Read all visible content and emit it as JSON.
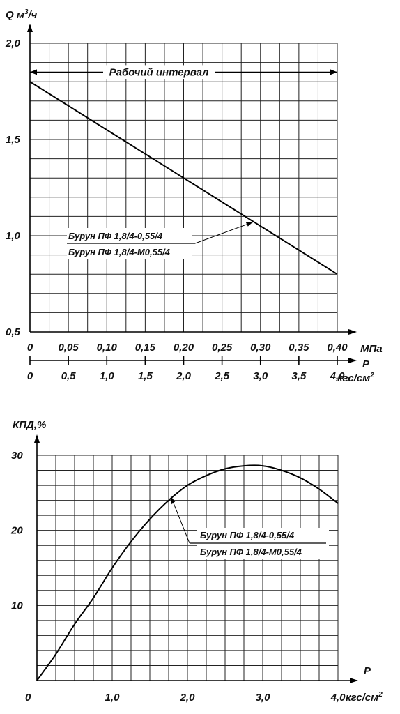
{
  "chart_data": [
    {
      "type": "line",
      "ylabel": "Q м³/ч",
      "ylabel_main": "Q м",
      "ylabel_sup": "3",
      "ylabel_tail": "/ч",
      "ylim": [
        0.5,
        2.0
      ],
      "yticks": [
        {
          "v": 0.5,
          "label": "0,5"
        },
        {
          "v": 1.0,
          "label": "1,0"
        },
        {
          "v": 1.5,
          "label": "1,5"
        },
        {
          "v": 2.0,
          "label": "2,0"
        }
      ],
      "y_minor_step": 0.1,
      "xlim": [
        0,
        4.0
      ],
      "x_minor_step": 0.25,
      "x_mpa_ticks": [
        {
          "v": 0,
          "label": "0"
        },
        {
          "v": 0.5,
          "label": "0,05"
        },
        {
          "v": 1.0,
          "label": "0,10"
        },
        {
          "v": 1.5,
          "label": "0,15"
        },
        {
          "v": 2.0,
          "label": "0,20"
        },
        {
          "v": 2.5,
          "label": "0,25"
        },
        {
          "v": 3.0,
          "label": "0,30"
        },
        {
          "v": 3.5,
          "label": "0,35"
        },
        {
          "v": 4.0,
          "label": "0,40"
        }
      ],
      "x_mpa_unit": "МПа",
      "x_kgf_ticks": [
        {
          "v": 0,
          "label": "0"
        },
        {
          "v": 0.5,
          "label": "0,5"
        },
        {
          "v": 1.0,
          "label": "1,0"
        },
        {
          "v": 1.5,
          "label": "1,5"
        },
        {
          "v": 2.0,
          "label": "2,0"
        },
        {
          "v": 2.5,
          "label": "2,5"
        },
        {
          "v": 3.0,
          "label": "3,0"
        },
        {
          "v": 3.5,
          "label": "3,5"
        },
        {
          "v": 4.0,
          "label": "4,0"
        }
      ],
      "x_symbol": "P",
      "x_kgf_unit_main": "кгс/см",
      "x_kgf_unit_sup": "2",
      "interval_label": "Рабочий интервал",
      "interval": [
        0,
        4.0
      ],
      "interval_y": 1.85,
      "series": [
        {
          "x": [
            0,
            4.0
          ],
          "y": [
            1.8,
            0.8
          ]
        }
      ],
      "legend": [
        "Бурун ПФ 1,8/4-0,55/4",
        "Бурун ПФ 1,8/4-М0,55/4"
      ],
      "pointer_target": {
        "x": 2.9,
        "y": 1.07
      }
    },
    {
      "type": "line",
      "ylabel": "КПД,%",
      "ylim": [
        0,
        30
      ],
      "yticks": [
        {
          "v": 10,
          "label": "10"
        },
        {
          "v": 20,
          "label": "20"
        },
        {
          "v": 30,
          "label": "30"
        }
      ],
      "y_minor_step": 2,
      "y_origin_label": "0",
      "xlim": [
        0,
        4.0
      ],
      "x_minor_step": 0.25,
      "xticks": [
        {
          "v": 1.0,
          "label": "1,0"
        },
        {
          "v": 2.0,
          "label": "2,0"
        },
        {
          "v": 3.0,
          "label": "3,0"
        },
        {
          "v": 4.0,
          "label": "4,0"
        }
      ],
      "x_symbol": "P",
      "x_unit_main": "кгс/см",
      "x_unit_sup": "2",
      "series": [
        {
          "x": [
            0,
            0.25,
            0.5,
            0.75,
            1.0,
            1.25,
            1.5,
            1.75,
            2.0,
            2.25,
            2.5,
            2.75,
            3.0,
            3.25,
            3.5,
            3.75,
            4.0
          ],
          "y": [
            0,
            3.5,
            7.5,
            11.0,
            15.0,
            18.5,
            21.5,
            24.0,
            26.0,
            27.3,
            28.2,
            28.6,
            28.6,
            28.0,
            27.0,
            25.5,
            23.6
          ]
        }
      ],
      "legend": [
        "Бурун ПФ 1,8/4-0,55/4",
        "Бурун ПФ 1,8/4-М0,55/4"
      ],
      "pointer_target": {
        "x": 1.78,
        "y": 24.5
      }
    }
  ]
}
